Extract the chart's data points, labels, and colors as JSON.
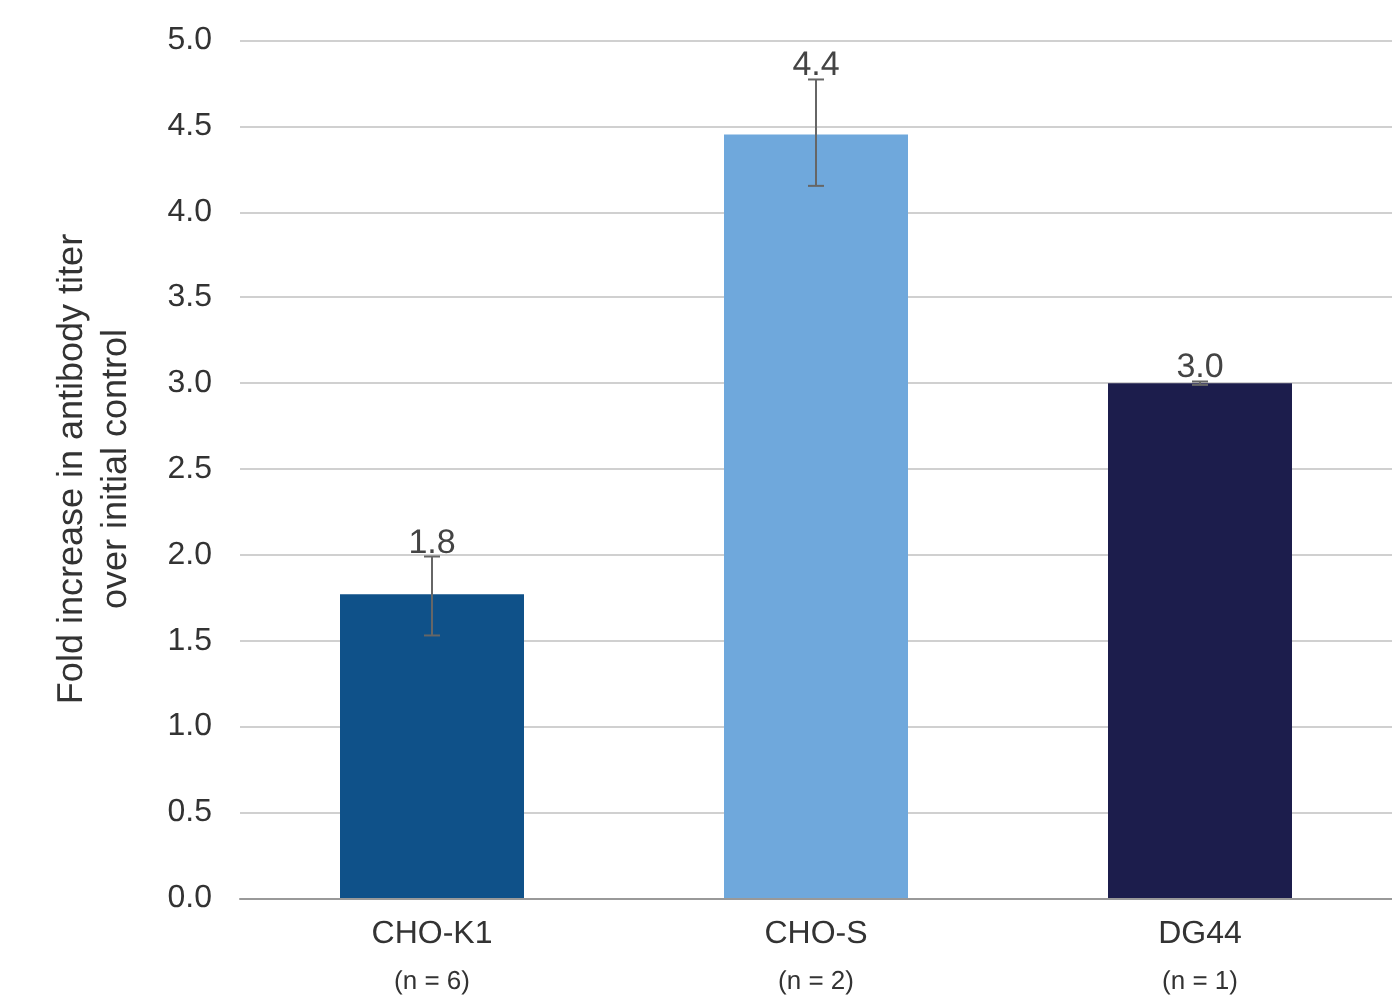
{
  "chart_data": {
    "type": "bar",
    "ylabel": "Fold increase in antibody titer\nover initial control",
    "categories": [
      "CHO-K1\n(n = 6)",
      "CHO-S\n(n = 2)",
      "DG44\n(n = 1)"
    ],
    "values": [
      1.77,
      4.45,
      3.0
    ],
    "colors": [
      "#0f5189",
      "#6fa8dc",
      "#1c1d4c"
    ],
    "value_labels": [
      "1.8",
      "4.4",
      "3.0"
    ],
    "errors": [
      [
        1.53,
        1.99
      ],
      [
        4.15,
        4.77
      ],
      [
        2.99,
        3.01
      ]
    ],
    "ylim": [
      0,
      5
    ],
    "yticks": [
      {
        "value": 0,
        "label": "0.0"
      },
      0.5,
      {
        "value": 1,
        "label": "1.0"
      },
      1.5,
      {
        "value": 2,
        "label": "2.0"
      },
      2.5,
      {
        "value": 3,
        "label": "3.0"
      },
      3.5,
      {
        "value": 4,
        "label": "4.0"
      },
      4.5,
      {
        "value": 5,
        "label": "5.0"
      }
    ],
    "grid": "y"
  }
}
